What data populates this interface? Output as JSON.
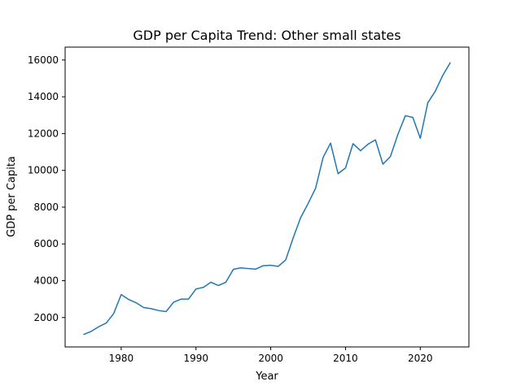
{
  "chart_data": {
    "type": "line",
    "title": "GDP per Capita Trend: Other small states",
    "xlabel": "Year",
    "ylabel": "GDP per Capita",
    "xlim": [
      1972.5,
      2026.5
    ],
    "ylim": [
      400,
      16700
    ],
    "xticks": [
      1980,
      1990,
      2000,
      2010,
      2020
    ],
    "yticks": [
      2000,
      4000,
      6000,
      8000,
      10000,
      12000,
      14000,
      16000
    ],
    "grid": false,
    "line_color": "#1f77b4",
    "series": [
      {
        "x": [
          1975,
          1976,
          1977,
          1978,
          1979,
          1980,
          1981,
          1982,
          1983,
          1984,
          1985,
          1986,
          1987,
          1988,
          1989,
          1990,
          1991,
          1992,
          1993,
          1994,
          1995,
          1996,
          1997,
          1998,
          1999,
          2000,
          2001,
          2002,
          2003,
          2004,
          2005,
          2006,
          2007,
          2008,
          2009,
          2010,
          2011,
          2012,
          2013,
          2014,
          2015,
          2016,
          2017,
          2018,
          2019,
          2020,
          2021,
          2022,
          2023,
          2024
        ],
        "values": [
          1080,
          1250,
          1500,
          1700,
          2220,
          3250,
          2980,
          2800,
          2540,
          2480,
          2380,
          2320,
          2830,
          3000,
          3000,
          3550,
          3640,
          3920,
          3740,
          3920,
          4620,
          4700,
          4660,
          4630,
          4820,
          4840,
          4780,
          5130,
          6330,
          7430,
          8200,
          9030,
          10700,
          11480,
          9820,
          10130,
          11450,
          11070,
          11420,
          11660,
          10340,
          10750,
          11950,
          12970,
          12880,
          11740,
          13670,
          14300,
          15160,
          15850
        ]
      }
    ]
  }
}
